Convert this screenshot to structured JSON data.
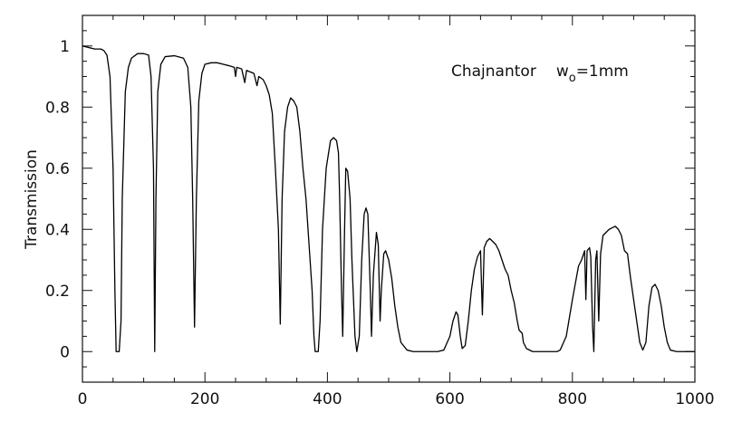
{
  "chart_data": {
    "type": "line",
    "ylabel": "Transmission",
    "annotation": {
      "site": "Chajnantor",
      "symbol": "w",
      "subscript": "o",
      "value": "=1mm"
    },
    "xlim": [
      0,
      1000
    ],
    "ylim": [
      -0.1,
      1.1
    ],
    "xticks": [
      0,
      200,
      400,
      600,
      800,
      1000
    ],
    "yticks": [
      0,
      0.2,
      0.4,
      0.6,
      0.8,
      1
    ],
    "xminorticks": [
      50,
      100,
      150,
      250,
      300,
      350,
      450,
      500,
      550,
      650,
      700,
      750,
      850,
      900,
      950
    ],
    "yminorticks": [
      -0.05,
      0.05,
      0.1,
      0.15,
      0.25,
      0.3,
      0.35,
      0.45,
      0.5,
      0.55,
      0.65,
      0.7,
      0.75,
      0.85,
      0.9,
      0.95,
      1.05
    ],
    "x": [
      0,
      10,
      20,
      30,
      35,
      40,
      45,
      50,
      53,
      55,
      60,
      63,
      65,
      70,
      75,
      80,
      90,
      100,
      108,
      112,
      116,
      118,
      120,
      123,
      128,
      135,
      150,
      165,
      172,
      177,
      180,
      183,
      186,
      190,
      195,
      200,
      210,
      220,
      230,
      240,
      248,
      250,
      252,
      260,
      265,
      268,
      280,
      285,
      288,
      295,
      300,
      305,
      310,
      315,
      320,
      323,
      326,
      330,
      335,
      340,
      345,
      350,
      355,
      360,
      365,
      370,
      375,
      378,
      380,
      385,
      388,
      392,
      398,
      405,
      410,
      415,
      418,
      420,
      423,
      425,
      428,
      430,
      433,
      437,
      440,
      445,
      448,
      452,
      456,
      460,
      463,
      466,
      470,
      472,
      475,
      480,
      483,
      486,
      488,
      492,
      495,
      500,
      505,
      510,
      515,
      520,
      530,
      540,
      560,
      580,
      590,
      600,
      605,
      610,
      613,
      617,
      620,
      625,
      630,
      635,
      640,
      645,
      650,
      653,
      656,
      660,
      665,
      670,
      675,
      680,
      685,
      690,
      695,
      700,
      705,
      710,
      713,
      718,
      720,
      725,
      735,
      760,
      775,
      780,
      790,
      800,
      810,
      815,
      820,
      822,
      824,
      828,
      830,
      833,
      835,
      838,
      840,
      843,
      846,
      850,
      855,
      860,
      865,
      870,
      875,
      880,
      885,
      890,
      895,
      900,
      905,
      910,
      915,
      920,
      925,
      930,
      935,
      940,
      945,
      950,
      955,
      960,
      970,
      1000
    ],
    "series": [
      {
        "color": "#000000",
        "values": [
          1.0,
          0.995,
          0.99,
          0.99,
          0.985,
          0.97,
          0.9,
          0.6,
          0.2,
          0.0,
          0.0,
          0.1,
          0.5,
          0.85,
          0.93,
          0.96,
          0.975,
          0.975,
          0.97,
          0.9,
          0.6,
          0.0,
          0.5,
          0.85,
          0.94,
          0.965,
          0.968,
          0.96,
          0.93,
          0.8,
          0.5,
          0.08,
          0.5,
          0.82,
          0.91,
          0.94,
          0.945,
          0.945,
          0.94,
          0.935,
          0.93,
          0.9,
          0.93,
          0.925,
          0.88,
          0.92,
          0.91,
          0.87,
          0.9,
          0.89,
          0.87,
          0.84,
          0.78,
          0.6,
          0.4,
          0.09,
          0.5,
          0.72,
          0.8,
          0.83,
          0.82,
          0.8,
          0.72,
          0.6,
          0.5,
          0.35,
          0.2,
          0.05,
          0.0,
          0.0,
          0.1,
          0.4,
          0.6,
          0.69,
          0.7,
          0.69,
          0.65,
          0.5,
          0.2,
          0.05,
          0.4,
          0.6,
          0.59,
          0.5,
          0.3,
          0.05,
          0.0,
          0.05,
          0.3,
          0.45,
          0.47,
          0.45,
          0.2,
          0.05,
          0.25,
          0.39,
          0.35,
          0.1,
          0.2,
          0.32,
          0.33,
          0.3,
          0.24,
          0.15,
          0.08,
          0.03,
          0.005,
          0,
          0,
          0,
          0.005,
          0.05,
          0.1,
          0.13,
          0.12,
          0.05,
          0.01,
          0.02,
          0.1,
          0.2,
          0.27,
          0.31,
          0.33,
          0.12,
          0.34,
          0.36,
          0.37,
          0.36,
          0.35,
          0.33,
          0.3,
          0.27,
          0.25,
          0.2,
          0.16,
          0.1,
          0.07,
          0.06,
          0.03,
          0.01,
          0.0,
          0,
          0.0,
          0.005,
          0.05,
          0.17,
          0.28,
          0.3,
          0.33,
          0.17,
          0.33,
          0.34,
          0.31,
          0.08,
          0.0,
          0.3,
          0.33,
          0.1,
          0.32,
          0.38,
          0.39,
          0.4,
          0.405,
          0.41,
          0.4,
          0.38,
          0.33,
          0.32,
          0.24,
          0.17,
          0.1,
          0.03,
          0.005,
          0.03,
          0.15,
          0.21,
          0.22,
          0.2,
          0.15,
          0.08,
          0.03,
          0.005,
          0,
          0
        ]
      }
    ]
  }
}
